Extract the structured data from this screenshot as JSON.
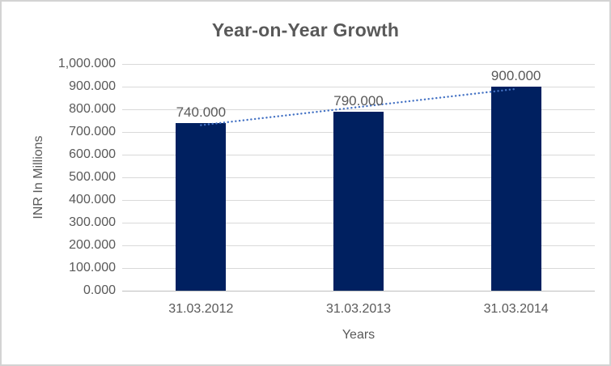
{
  "chart_data": {
    "type": "bar",
    "title": "Year-on-Year Growth",
    "xlabel": "Years",
    "ylabel": "INR In Millions",
    "categories": [
      "31.03.2012",
      "31.03.2013",
      "31.03.2014"
    ],
    "values": [
      740,
      790,
      900
    ],
    "value_labels": [
      "740.000",
      "790.000",
      "900.000"
    ],
    "ylim": [
      0,
      1000
    ],
    "y_tick_step": 100,
    "y_tick_labels": [
      "0.000",
      "100.000",
      "200.000",
      "300.000",
      "400.000",
      "500.000",
      "600.000",
      "700.000",
      "800.000",
      "900.000",
      "1,000.000"
    ],
    "grid": true,
    "legend": "none",
    "trendline": {
      "type": "linear",
      "style": "dotted"
    }
  },
  "colors": {
    "bar": "#002060",
    "trendline": "#4472C4",
    "gridline": "#D9D9D9",
    "axis_line": "#BFBFBF",
    "text": "#595959",
    "frame_border": "#D3D3D3",
    "background": "#FFFFFF"
  }
}
